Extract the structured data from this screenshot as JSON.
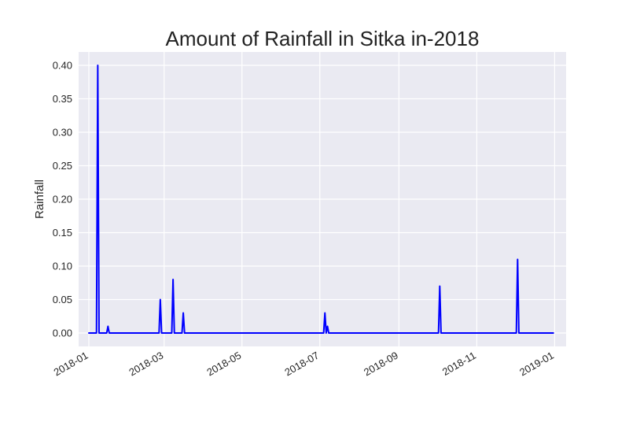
{
  "chart_data": {
    "type": "line",
    "title": "Amount of Rainfall in Sitka in-2018",
    "xlabel": "",
    "ylabel": "Rainfall",
    "x_axis": {
      "type": "date",
      "range": [
        "2017-12-24",
        "2019-01-10"
      ],
      "ticks": [
        {
          "date": "2018-01-01",
          "label": "2018-01"
        },
        {
          "date": "2018-03-01",
          "label": "2018-03"
        },
        {
          "date": "2018-05-01",
          "label": "2018-05"
        },
        {
          "date": "2018-07-01",
          "label": "2018-07"
        },
        {
          "date": "2018-09-01",
          "label": "2018-09"
        },
        {
          "date": "2018-11-01",
          "label": "2018-11"
        },
        {
          "date": "2019-01-01",
          "label": "2019-01"
        }
      ]
    },
    "ylim": [
      -0.02,
      0.42
    ],
    "y_ticks": [
      {
        "value": 0.0,
        "label": "0.00"
      },
      {
        "value": 0.05,
        "label": "0.05"
      },
      {
        "value": 0.1,
        "label": "0.10"
      },
      {
        "value": 0.15,
        "label": "0.15"
      },
      {
        "value": 0.2,
        "label": "0.20"
      },
      {
        "value": 0.25,
        "label": "0.25"
      },
      {
        "value": 0.3,
        "label": "0.30"
      },
      {
        "value": 0.35,
        "label": "0.35"
      },
      {
        "value": 0.4,
        "label": "0.40"
      }
    ],
    "grid": true,
    "colors": {
      "line": "#0000ff",
      "plot_background": "#eaeaf2",
      "grid": "#ffffff"
    },
    "series": [
      {
        "points": [
          {
            "date": "2018-01-01",
            "value": 0.0
          },
          {
            "date": "2018-01-07",
            "value": 0.0
          },
          {
            "date": "2018-01-08",
            "value": 0.4
          },
          {
            "date": "2018-01-09",
            "value": 0.0
          },
          {
            "date": "2018-01-15",
            "value": 0.0
          },
          {
            "date": "2018-01-16",
            "value": 0.01
          },
          {
            "date": "2018-01-17",
            "value": 0.0
          },
          {
            "date": "2018-02-25",
            "value": 0.0
          },
          {
            "date": "2018-02-26",
            "value": 0.05
          },
          {
            "date": "2018-02-27",
            "value": 0.0
          },
          {
            "date": "2018-03-07",
            "value": 0.0
          },
          {
            "date": "2018-03-08",
            "value": 0.08
          },
          {
            "date": "2018-03-09",
            "value": 0.0
          },
          {
            "date": "2018-03-15",
            "value": 0.0
          },
          {
            "date": "2018-03-16",
            "value": 0.03
          },
          {
            "date": "2018-03-17",
            "value": 0.0
          },
          {
            "date": "2018-07-04",
            "value": 0.0
          },
          {
            "date": "2018-07-05",
            "value": 0.03
          },
          {
            "date": "2018-07-06",
            "value": 0.0
          },
          {
            "date": "2018-07-07",
            "value": 0.01
          },
          {
            "date": "2018-07-08",
            "value": 0.0
          },
          {
            "date": "2018-10-02",
            "value": 0.0
          },
          {
            "date": "2018-10-03",
            "value": 0.07
          },
          {
            "date": "2018-10-04",
            "value": 0.0
          },
          {
            "date": "2018-12-02",
            "value": 0.0
          },
          {
            "date": "2018-12-03",
            "value": 0.11
          },
          {
            "date": "2018-12-04",
            "value": 0.0
          },
          {
            "date": "2018-12-31",
            "value": 0.0
          }
        ]
      }
    ]
  }
}
